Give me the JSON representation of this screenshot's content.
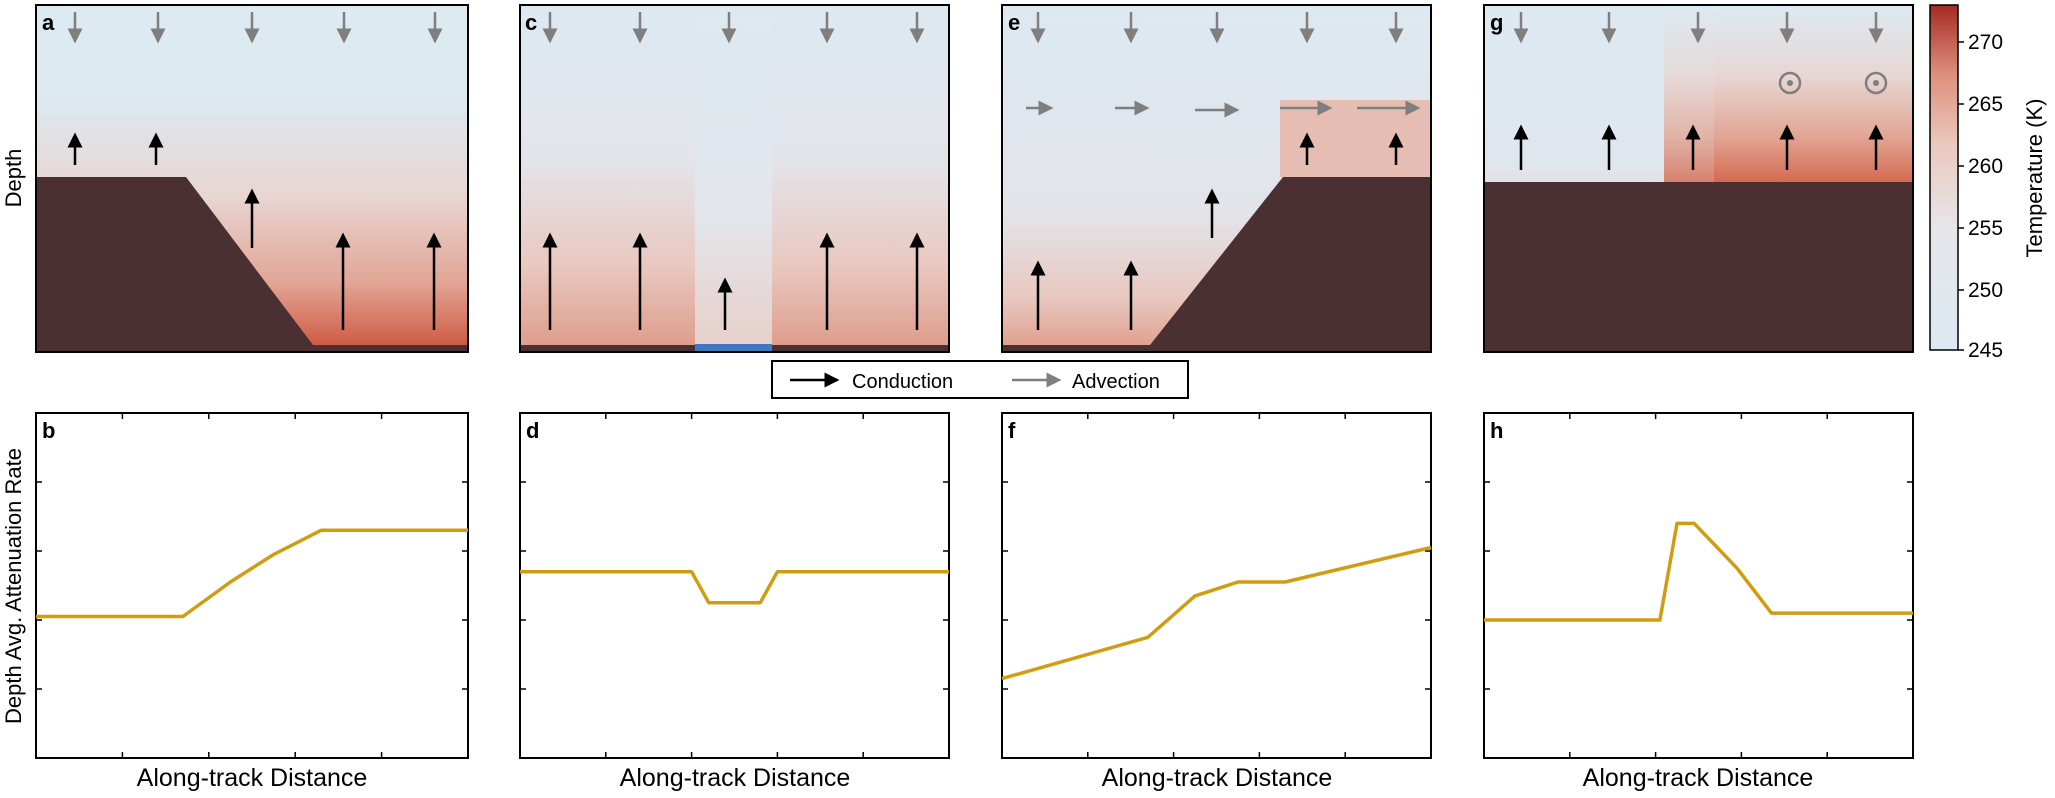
{
  "colors": {
    "bedrock": "#4a3033",
    "cold": "#dbe9f2",
    "warm": "#cc4a32",
    "curve": "#d19d10",
    "conduction_arrow": "#000000",
    "advection_arrow": "#7f7f7f",
    "water": "#3d78c0"
  },
  "y_axis_top_label": "Depth",
  "y_axis_bottom_label": "Depth Avg. Attenuation Rate",
  "x_axis_label": "Along-track Distance",
  "legend": {
    "conduction": "Conduction",
    "advection": "Advection"
  },
  "colorbar": {
    "label": "Temperature (K)",
    "min": 245,
    "max": 273,
    "ticks": [
      "270",
      "265",
      "260",
      "255",
      "250",
      "245"
    ],
    "colormap": [
      "#dbe9f2",
      "#e6e6ea",
      "#ebc8bd",
      "#dd8f7c",
      "#a62a24"
    ]
  },
  "top_panels": [
    {
      "letter": "a",
      "scenario": "bed slopes down; basal heating strongest in deep trough"
    },
    {
      "letter": "c",
      "scenario": "flat bed with basal water patch in middle"
    },
    {
      "letter": "e",
      "scenario": "bed slopes up; horizontal advection increasing downstream"
    },
    {
      "letter": "g",
      "scenario": "flat bed; out-of-plane advection on right"
    }
  ],
  "bottom_panels": [
    {
      "letter": "b"
    },
    {
      "letter": "d"
    },
    {
      "letter": "f"
    },
    {
      "letter": "h"
    }
  ],
  "chart_data": [
    {
      "type": "line",
      "panel": "b",
      "x": [
        0,
        0.34,
        0.45,
        0.55,
        0.66,
        1.0
      ],
      "y": [
        0.41,
        0.41,
        0.51,
        0.59,
        0.66,
        0.66
      ],
      "xlabel": "Along-track Distance",
      "ylabel": "Depth Avg. Attenuation Rate"
    },
    {
      "type": "line",
      "panel": "d",
      "x": [
        0,
        0.4,
        0.44,
        0.56,
        0.6,
        1.0
      ],
      "y": [
        0.54,
        0.54,
        0.45,
        0.45,
        0.54,
        0.54
      ],
      "xlabel": "Along-track Distance",
      "ylabel": ""
    },
    {
      "type": "line",
      "panel": "f",
      "x": [
        0,
        0.34,
        0.45,
        0.55,
        0.66,
        1.0
      ],
      "y": [
        0.23,
        0.35,
        0.47,
        0.51,
        0.51,
        0.61
      ],
      "xlabel": "Along-track Distance",
      "ylabel": ""
    },
    {
      "type": "line",
      "panel": "h",
      "x": [
        0,
        0.41,
        0.45,
        0.49,
        0.59,
        0.67,
        1.0
      ],
      "y": [
        0.4,
        0.4,
        0.68,
        0.68,
        0.55,
        0.42,
        0.42
      ],
      "xlabel": "Along-track Distance",
      "ylabel": ""
    }
  ]
}
